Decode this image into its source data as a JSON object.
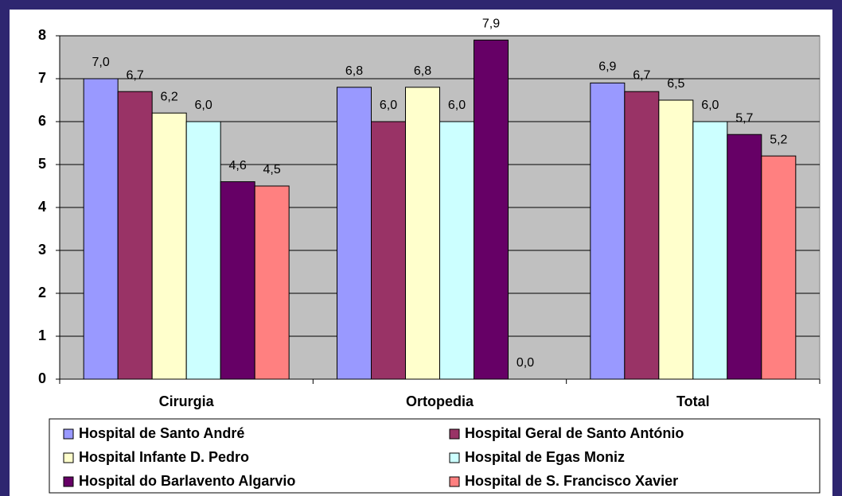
{
  "chart_data": {
    "type": "bar",
    "categories": [
      "Cirurgia",
      "Ortopedia",
      "Total"
    ],
    "series": [
      {
        "name": "Hospital de Santo André",
        "color": "#9999ff",
        "values": [
          7.0,
          6.8,
          6.9
        ],
        "value_labels": [
          "7,0",
          "6,8",
          "6,9"
        ]
      },
      {
        "name": "Hospital Geral de Santo António",
        "color": "#993366",
        "values": [
          6.7,
          6.0,
          6.7
        ],
        "value_labels": [
          "6,7",
          "6,0",
          "6,7"
        ]
      },
      {
        "name": "Hospital Infante D. Pedro",
        "color": "#ffffcc",
        "values": [
          6.2,
          6.8,
          6.5
        ],
        "value_labels": [
          "6,2",
          "6,8",
          "6,5"
        ]
      },
      {
        "name": "Hospital de Egas Moniz",
        "color": "#ccffff",
        "values": [
          6.0,
          6.0,
          6.0
        ],
        "value_labels": [
          "6,0",
          "6,0",
          "6,0"
        ]
      },
      {
        "name": "Hospital do Barlavento Algarvio",
        "color": "#660066",
        "values": [
          4.6,
          7.9,
          5.7
        ],
        "value_labels": [
          "4,6",
          "7,9",
          "5,7"
        ]
      },
      {
        "name": "Hospital de S. Francisco Xavier",
        "color": "#ff8080",
        "values": [
          4.5,
          0.0,
          5.2
        ],
        "value_labels": [
          "4,5",
          "0,0",
          "5,2"
        ]
      }
    ],
    "ylim": [
      0,
      8
    ],
    "yticks": [
      0,
      1,
      2,
      3,
      4,
      5,
      6,
      7,
      8
    ],
    "grid": true,
    "legend": "bottom"
  }
}
